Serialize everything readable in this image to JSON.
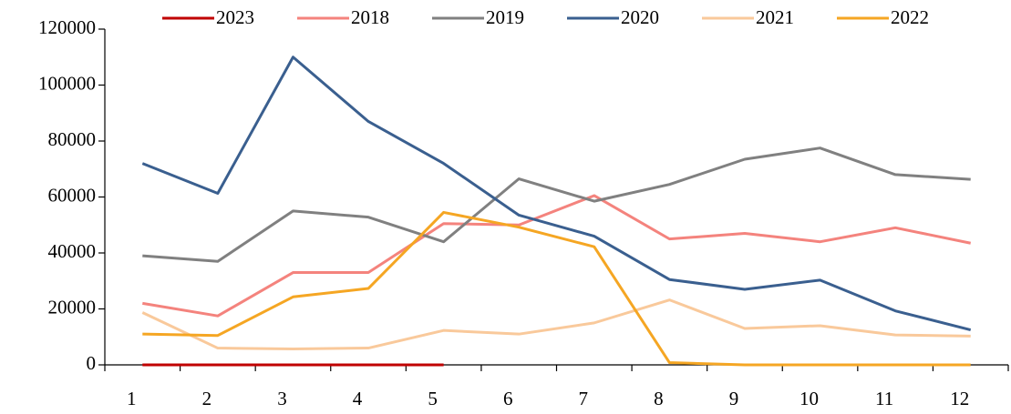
{
  "chart_data": {
    "type": "line",
    "categories": [
      "1",
      "2",
      "3",
      "4",
      "5",
      "6",
      "7",
      "8",
      "9",
      "10",
      "11",
      "12"
    ],
    "series": [
      {
        "name": "2023",
        "color": "#c00000",
        "values": [
          0,
          0,
          0,
          0,
          0,
          null,
          null,
          null,
          null,
          null,
          null,
          null
        ]
      },
      {
        "name": "2018",
        "color": "#f4837d",
        "values": [
          22000,
          17500,
          33000,
          33000,
          50500,
          50000,
          60500,
          45000,
          47000,
          44000,
          49000,
          43500
        ]
      },
      {
        "name": "2019",
        "color": "#808080",
        "values": [
          39000,
          37000,
          55000,
          52800,
          44000,
          66500,
          58500,
          64500,
          73500,
          77500,
          68000,
          66300
        ]
      },
      {
        "name": "2020",
        "color": "#3a5f8f",
        "values": [
          72000,
          61300,
          110000,
          87000,
          72000,
          53500,
          46000,
          30500,
          27000,
          30300,
          19300,
          12500
        ]
      },
      {
        "name": "2021",
        "color": "#f9c99b",
        "values": [
          18700,
          6000,
          5700,
          6000,
          12300,
          11000,
          15000,
          23200,
          13000,
          14000,
          10700,
          10300
        ]
      },
      {
        "name": "2022",
        "color": "#f5a623",
        "values": [
          11000,
          10500,
          24300,
          27300,
          54500,
          49200,
          42200,
          800,
          0,
          0,
          0,
          0
        ]
      }
    ],
    "ylim": [
      0,
      120000
    ],
    "yticks": [
      0,
      20000,
      40000,
      60000,
      80000,
      100000,
      120000
    ],
    "legend": "top"
  }
}
